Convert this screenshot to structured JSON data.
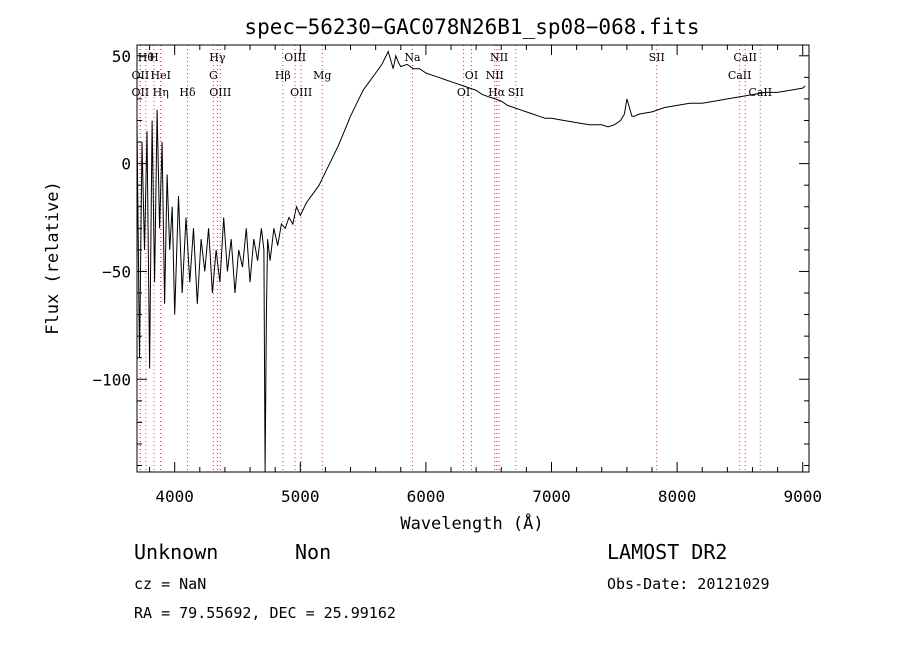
{
  "chart_data": {
    "type": "line",
    "title": "spec−56230−GAC078N26B1_sp08−068.fits",
    "xlabel": "Wavelength (Å)",
    "ylabel": "Flux (relative)",
    "xlim": [
      3700,
      9050
    ],
    "ylim": [
      -143,
      55
    ],
    "xticks": [
      4000,
      5000,
      6000,
      7000,
      8000,
      9000
    ],
    "yticks": [
      50,
      0,
      -50,
      -100
    ],
    "ytick_labels": [
      "50",
      "0",
      "−50",
      "−100"
    ],
    "grid": false,
    "series": [
      {
        "x": [
          3700,
          3720,
          3740,
          3760,
          3780,
          3800,
          3820,
          3840,
          3860,
          3880,
          3900,
          3920,
          3940,
          3960,
          3980,
          4000,
          4030,
          4060,
          4090,
          4120,
          4150,
          4180,
          4210,
          4240,
          4270,
          4300,
          4330,
          4360,
          4390,
          4420,
          4450,
          4480,
          4510,
          4540,
          4570,
          4600,
          4630,
          4660,
          4690,
          4710,
          4720,
          4730,
          4740,
          4760,
          4790,
          4820,
          4850,
          4880,
          4910,
          4940,
          4970,
          5000,
          5050,
          5100,
          5150,
          5200,
          5250,
          5300,
          5350,
          5400,
          5450,
          5500,
          5550,
          5600,
          5650,
          5700,
          5720,
          5740,
          5760,
          5780,
          5800,
          5850,
          5900,
          5950,
          6000,
          6050,
          6100,
          6150,
          6200,
          6250,
          6300,
          6350,
          6400,
          6450,
          6500,
          6550,
          6600,
          6650,
          6700,
          6750,
          6800,
          6850,
          6900,
          6950,
          7000,
          7100,
          7200,
          7300,
          7400,
          7450,
          7500,
          7550,
          7580,
          7600,
          7620,
          7640,
          7660,
          7700,
          7800,
          7900,
          8000,
          8100,
          8200,
          8300,
          8400,
          8500,
          8600,
          8700,
          8800,
          8900,
          9000,
          9020
        ],
        "y": [
          18,
          -90,
          10,
          -40,
          15,
          -95,
          20,
          -55,
          25,
          -30,
          10,
          -65,
          -5,
          -40,
          -20,
          -70,
          -15,
          -60,
          -25,
          -55,
          -30,
          -65,
          -35,
          -50,
          -30,
          -60,
          -40,
          -55,
          -25,
          -50,
          -35,
          -60,
          -40,
          -48,
          -30,
          -55,
          -35,
          -45,
          -30,
          -40,
          -143,
          -70,
          -35,
          -45,
          -30,
          -38,
          -28,
          -30,
          -25,
          -28,
          -20,
          -24,
          -18,
          -14,
          -10,
          -4,
          2,
          8,
          15,
          22,
          28,
          34,
          38,
          42,
          46,
          52,
          48,
          44,
          50,
          47,
          45,
          46,
          44,
          44,
          42,
          41,
          40,
          39,
          38,
          37,
          36,
          35,
          34,
          32,
          31,
          30,
          29,
          27,
          26,
          25,
          24,
          23,
          22,
          21,
          21,
          20,
          19,
          18,
          18,
          17,
          18,
          20,
          23,
          30,
          26,
          22,
          22,
          23,
          24,
          26,
          27,
          28,
          28,
          29,
          30,
          31,
          32,
          33,
          33,
          34,
          35,
          36
        ]
      }
    ],
    "lines": [
      {
        "wl": 3727,
        "label": "OII",
        "row": 1
      },
      {
        "wl": 3727,
        "label": "OII",
        "row": 2
      },
      {
        "wl": 3771,
        "label": "Hθ",
        "row": 0
      },
      {
        "wl": 3835,
        "label": "H",
        "row": 0
      },
      {
        "wl": 3889,
        "label": "HeI",
        "row": 1
      },
      {
        "wl": 3889,
        "label": "Hη",
        "row": 2
      },
      {
        "wl": 4102,
        "label": "Hδ",
        "row": 2
      },
      {
        "wl": 4308,
        "label": "G",
        "row": 1
      },
      {
        "wl": 4340,
        "label": "Hγ",
        "row": 0
      },
      {
        "wl": 4363,
        "label": "OIII",
        "row": 2
      },
      {
        "wl": 4861,
        "label": "Hβ",
        "row": 1
      },
      {
        "wl": 4959,
        "label": "OIII",
        "row": 0
      },
      {
        "wl": 5007,
        "label": "OIII",
        "row": 2
      },
      {
        "wl": 5175,
        "label": "Mg",
        "row": 1
      },
      {
        "wl": 5893,
        "label": "Na",
        "row": 0
      },
      {
        "wl": 6300,
        "label": "OI",
        "row": 2
      },
      {
        "wl": 6363,
        "label": "OI",
        "row": 1
      },
      {
        "wl": 6548,
        "label": "NII",
        "row": 1
      },
      {
        "wl": 6563,
        "label": "Hα",
        "row": 2
      },
      {
        "wl": 6583,
        "label": "NII",
        "row": 0
      },
      {
        "wl": 6716,
        "label": "SII",
        "row": 2
      },
      {
        "wl": 7838,
        "label": "SII",
        "row": 0
      },
      {
        "wl": 8498,
        "label": "CaII",
        "row": 1
      },
      {
        "wl": 8542,
        "label": "CaII",
        "row": 0
      },
      {
        "wl": 8662,
        "label": "CaII",
        "row": 2
      }
    ]
  },
  "info": {
    "class": "Unknown",
    "subclass": "Non",
    "cz": "cz = NaN",
    "radec": "RA =  79.55692, DEC =  25.99162",
    "survey": "LAMOST DR2",
    "obsdate": "Obs-Date: 20121029"
  }
}
